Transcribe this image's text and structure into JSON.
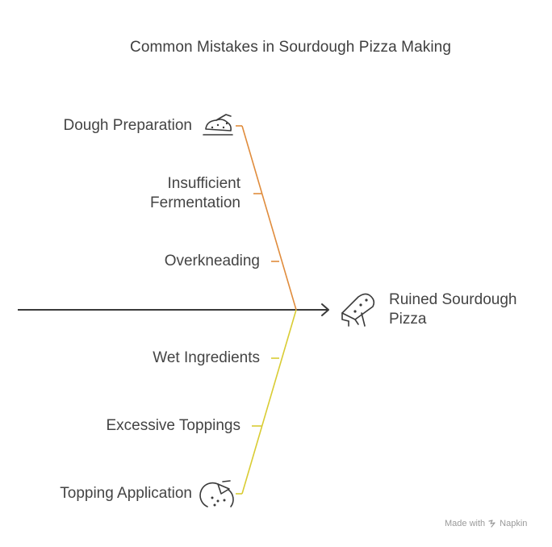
{
  "title": "Common Mistakes in Sourdough Pizza Making",
  "effect": {
    "line1": "Ruined Sourdough",
    "line2": "Pizza",
    "icon": "pizza-slice-icon"
  },
  "top_group": {
    "color": "#e08c3c",
    "category": {
      "label": "Dough Preparation",
      "icon": "dough-bowl-icon"
    },
    "causes": [
      {
        "line1": "Insufficient",
        "line2": "Fermentation"
      },
      {
        "line1": "Overkneading",
        "line2": ""
      }
    ]
  },
  "bottom_group": {
    "color": "#d9cc33",
    "category": {
      "label": "Topping Application",
      "icon": "pizza-toppings-icon"
    },
    "causes": [
      {
        "line1": "Wet Ingredients",
        "line2": ""
      },
      {
        "line1": "Excessive Toppings",
        "line2": ""
      }
    ]
  },
  "spine_color": "#3a3a3a",
  "footer": {
    "made_with": "Made with",
    "brand": "Napkin"
  }
}
